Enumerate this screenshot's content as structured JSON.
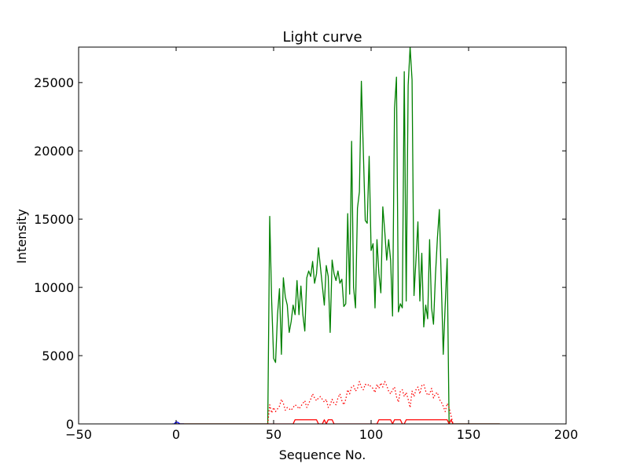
{
  "chart_data": {
    "type": "line",
    "title": "Light curve",
    "xlabel": "Sequence No.",
    "ylabel": "Intensity",
    "xlim": [
      -50,
      200
    ],
    "ylim": [
      0,
      27600
    ],
    "xticks": [
      -50,
      0,
      50,
      100,
      150,
      200
    ],
    "yticks": [
      0,
      5000,
      10000,
      15000,
      20000,
      25000
    ],
    "xtick_labels": [
      "−50",
      "0",
      "50",
      "100",
      "150",
      "200"
    ],
    "ytick_labels": [
      "0",
      "5000",
      "10000",
      "15000",
      "20000",
      "25000"
    ],
    "grid": false,
    "colors": {
      "green": "#008000",
      "red": "#ff0000",
      "blue": "#0000ff"
    },
    "series": [
      {
        "color": "#008000",
        "style": "solid",
        "x": [
          0,
          46,
          47,
          48,
          49,
          50,
          51,
          52,
          53,
          54,
          55,
          56,
          57,
          58,
          59,
          60,
          61,
          62,
          63,
          64,
          65,
          66,
          67,
          68,
          69,
          70,
          71,
          72,
          73,
          74,
          75,
          76,
          77,
          78,
          79,
          80,
          81,
          82,
          83,
          84,
          85,
          86,
          87,
          88,
          89,
          90,
          91,
          92,
          93,
          94,
          95,
          96,
          97,
          98,
          99,
          100,
          101,
          102,
          103,
          104,
          105,
          106,
          107,
          108,
          109,
          110,
          111,
          112,
          113,
          114,
          115,
          116,
          117,
          118,
          119,
          120,
          121,
          122,
          123,
          124,
          125,
          126,
          127,
          128,
          129,
          130,
          131,
          132,
          133,
          134,
          135,
          136,
          137,
          138,
          139,
          140,
          141,
          142,
          166
        ],
        "y": [
          0,
          0,
          0,
          15200,
          9000,
          4800,
          4500,
          8000,
          9900,
          5100,
          10700,
          9300,
          8700,
          6700,
          7500,
          8700,
          8000,
          10500,
          8000,
          10100,
          8000,
          6800,
          10700,
          11200,
          10800,
          11900,
          10300,
          11000,
          12900,
          11500,
          10100,
          8700,
          11600,
          10800,
          6700,
          12000,
          11000,
          10500,
          11200,
          10300,
          10600,
          8600,
          8800,
          15400,
          9500,
          20700,
          10000,
          8500,
          15800,
          17000,
          25100,
          20000,
          14900,
          14700,
          19600,
          12700,
          13200,
          8500,
          13500,
          11000,
          9600,
          15900,
          14100,
          12000,
          13500,
          12000,
          7900,
          23100,
          25400,
          8200,
          8800,
          8500,
          25800,
          9000,
          24800,
          27600,
          25200,
          9400,
          12000,
          14800,
          9000,
          12500,
          7100,
          8700,
          7700,
          13500,
          8500,
          7300,
          10900,
          13600,
          15700,
          10400,
          5100,
          8700,
          12100,
          0,
          0,
          0,
          0
        ]
      },
      {
        "color": "#ff0000",
        "style": "dotted",
        "x": [
          47,
          48,
          49,
          50,
          51,
          52,
          53,
          54,
          55,
          56,
          57,
          58,
          59,
          60,
          61,
          62,
          63,
          64,
          65,
          66,
          67,
          68,
          69,
          70,
          71,
          72,
          73,
          74,
          75,
          76,
          77,
          78,
          79,
          80,
          81,
          82,
          83,
          84,
          85,
          86,
          87,
          88,
          89,
          90,
          91,
          92,
          93,
          94,
          95,
          96,
          97,
          98,
          99,
          100,
          101,
          102,
          103,
          104,
          105,
          106,
          107,
          108,
          109,
          110,
          111,
          112,
          113,
          114,
          115,
          116,
          117,
          118,
          119,
          120,
          121,
          122,
          123,
          124,
          125,
          126,
          127,
          128,
          129,
          130,
          131,
          132,
          133,
          134,
          135,
          136,
          137,
          138,
          139,
          140,
          141,
          142
        ],
        "y": [
          0,
          1400,
          800,
          1200,
          900,
          1100,
          1300,
          1800,
          1500,
          1000,
          1200,
          1100,
          1000,
          1200,
          1400,
          1300,
          1100,
          1300,
          1500,
          1700,
          1200,
          1500,
          1800,
          2200,
          1900,
          1700,
          1900,
          2000,
          1800,
          1600,
          1800,
          1200,
          1400,
          1800,
          1500,
          1400,
          1900,
          2200,
          1700,
          1400,
          1800,
          2500,
          2200,
          2700,
          2800,
          2400,
          2600,
          3100,
          2700,
          2500,
          2900,
          2800,
          2900,
          2700,
          2600,
          2300,
          2900,
          2600,
          3000,
          2700,
          3100,
          2800,
          2400,
          2200,
          2500,
          2700,
          2000,
          1600,
          2400,
          2500,
          2000,
          2300,
          1800,
          1200,
          2400,
          2000,
          2500,
          2700,
          2200,
          2800,
          2900,
          2400,
          2100,
          2200,
          2600,
          1900,
          2200,
          2300,
          1800,
          1600,
          1300,
          900,
          1500,
          1200,
          600,
          0
        ]
      },
      {
        "color": "#ff0000",
        "style": "solid",
        "x": [
          0,
          60,
          61,
          62,
          63,
          64,
          65,
          66,
          67,
          68,
          69,
          70,
          71,
          72,
          73,
          74,
          75,
          76,
          77,
          78,
          79,
          80,
          81,
          103,
          104,
          105,
          106,
          107,
          108,
          109,
          110,
          111,
          112,
          113,
          114,
          115,
          116,
          117,
          118,
          119,
          120,
          121,
          122,
          123,
          124,
          125,
          126,
          127,
          128,
          129,
          130,
          131,
          132,
          133,
          134,
          135,
          136,
          137,
          138,
          139,
          140,
          141,
          142,
          143,
          144,
          166
        ],
        "y": [
          0,
          0,
          300,
          300,
          300,
          300,
          300,
          300,
          300,
          300,
          300,
          300,
          300,
          300,
          0,
          0,
          0,
          300,
          0,
          300,
          300,
          300,
          0,
          0,
          300,
          300,
          300,
          300,
          300,
          300,
          300,
          0,
          300,
          300,
          300,
          300,
          0,
          0,
          300,
          300,
          300,
          300,
          300,
          300,
          300,
          300,
          300,
          300,
          300,
          300,
          300,
          300,
          300,
          300,
          300,
          300,
          300,
          300,
          300,
          300,
          0,
          300,
          0,
          0,
          0,
          0
        ]
      },
      {
        "color": "#0000ff",
        "style": "solid",
        "x": [
          -2,
          -1,
          0,
          1,
          2,
          3,
          4
        ],
        "y": [
          0,
          0,
          150,
          100,
          0,
          0,
          0
        ]
      }
    ]
  }
}
